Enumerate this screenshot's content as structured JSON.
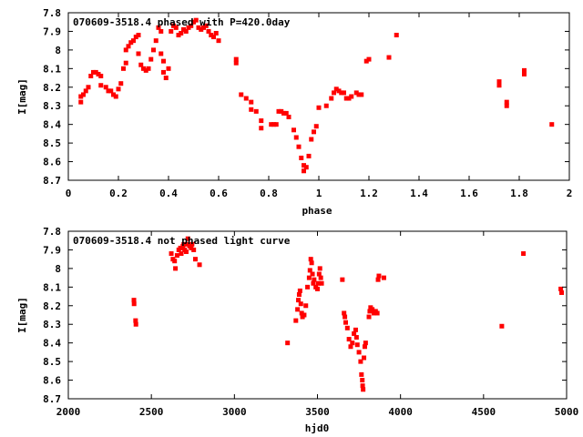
{
  "chart_data": [
    {
      "type": "scatter",
      "title": "070609-3518.4 phased with P=420.0day",
      "xlabel": "phase",
      "ylabel": "I[mag]",
      "xlim": [
        0,
        2
      ],
      "ylim": [
        7.8,
        8.7
      ],
      "y_inverted": true,
      "xticks": [
        0,
        0.2,
        0.4,
        0.6,
        0.8,
        1,
        1.2,
        1.4,
        1.6,
        1.8,
        2
      ],
      "yticks": [
        7.8,
        7.9,
        8,
        8.1,
        8.2,
        8.3,
        8.4,
        8.5,
        8.6,
        8.7
      ],
      "series": [
        {
          "color": "#ff0000",
          "points": [
            [
              0.05,
              8.28
            ],
            [
              0.05,
              8.25
            ],
            [
              0.06,
              8.24
            ],
            [
              0.07,
              8.22
            ],
            [
              0.08,
              8.2
            ],
            [
              0.09,
              8.14
            ],
            [
              0.1,
              8.12
            ],
            [
              0.11,
              8.12
            ],
            [
              0.12,
              8.13
            ],
            [
              0.13,
              8.14
            ],
            [
              0.13,
              8.19
            ],
            [
              0.15,
              8.2
            ],
            [
              0.16,
              8.22
            ],
            [
              0.17,
              8.22
            ],
            [
              0.18,
              8.24
            ],
            [
              0.19,
              8.25
            ],
            [
              0.2,
              8.21
            ],
            [
              0.21,
              8.18
            ],
            [
              0.22,
              8.1
            ],
            [
              0.23,
              8.07
            ],
            [
              0.23,
              8.0
            ],
            [
              0.24,
              7.98
            ],
            [
              0.25,
              7.96
            ],
            [
              0.26,
              7.95
            ],
            [
              0.27,
              7.93
            ],
            [
              0.28,
              7.92
            ],
            [
              0.28,
              8.02
            ],
            [
              0.29,
              8.08
            ],
            [
              0.3,
              8.1
            ],
            [
              0.31,
              8.11
            ],
            [
              0.32,
              8.1
            ],
            [
              0.33,
              8.05
            ],
            [
              0.34,
              8.0
            ],
            [
              0.35,
              7.95
            ],
            [
              0.36,
              7.88
            ],
            [
              0.37,
              7.9
            ],
            [
              0.37,
              8.02
            ],
            [
              0.38,
              8.06
            ],
            [
              0.38,
              8.12
            ],
            [
              0.39,
              8.15
            ],
            [
              0.4,
              8.1
            ],
            [
              0.41,
              7.9
            ],
            [
              0.42,
              7.87
            ],
            [
              0.43,
              7.88
            ],
            [
              0.44,
              7.92
            ],
            [
              0.45,
              7.91
            ],
            [
              0.46,
              7.89
            ],
            [
              0.47,
              7.9
            ],
            [
              0.48,
              7.88
            ],
            [
              0.49,
              7.87
            ],
            [
              0.5,
              7.85
            ],
            [
              0.51,
              7.84
            ],
            [
              0.52,
              7.88
            ],
            [
              0.53,
              7.89
            ],
            [
              0.54,
              7.88
            ],
            [
              0.55,
              7.87
            ],
            [
              0.56,
              7.9
            ],
            [
              0.57,
              7.92
            ],
            [
              0.58,
              7.93
            ],
            [
              0.59,
              7.91
            ],
            [
              0.6,
              7.95
            ],
            [
              0.67,
              8.05
            ],
            [
              0.67,
              8.07
            ],
            [
              0.69,
              8.24
            ],
            [
              0.71,
              8.26
            ],
            [
              0.73,
              8.28
            ],
            [
              0.73,
              8.32
            ],
            [
              0.75,
              8.33
            ],
            [
              0.77,
              8.38
            ],
            [
              0.77,
              8.42
            ],
            [
              0.81,
              8.4
            ],
            [
              0.82,
              8.4
            ],
            [
              0.83,
              8.4
            ],
            [
              0.84,
              8.33
            ],
            [
              0.85,
              8.33
            ],
            [
              0.86,
              8.34
            ],
            [
              0.87,
              8.34
            ],
            [
              0.88,
              8.36
            ],
            [
              0.9,
              8.43
            ],
            [
              0.91,
              8.47
            ],
            [
              0.92,
              8.52
            ],
            [
              0.93,
              8.58
            ],
            [
              0.94,
              8.62
            ],
            [
              0.94,
              8.65
            ],
            [
              0.95,
              8.63
            ],
            [
              0.96,
              8.57
            ],
            [
              0.97,
              8.48
            ],
            [
              0.98,
              8.44
            ],
            [
              0.99,
              8.41
            ],
            [
              1.0,
              8.31
            ],
            [
              1.03,
              8.3
            ],
            [
              1.05,
              8.26
            ],
            [
              1.06,
              8.23
            ],
            [
              1.07,
              8.21
            ],
            [
              1.08,
              8.22
            ],
            [
              1.09,
              8.23
            ],
            [
              1.1,
              8.23
            ],
            [
              1.11,
              8.26
            ],
            [
              1.12,
              8.26
            ],
            [
              1.13,
              8.25
            ],
            [
              1.15,
              8.23
            ],
            [
              1.16,
              8.24
            ],
            [
              1.17,
              8.24
            ],
            [
              1.19,
              8.06
            ],
            [
              1.2,
              8.05
            ],
            [
              1.28,
              8.04
            ],
            [
              1.31,
              7.92
            ],
            [
              1.72,
              8.17
            ],
            [
              1.72,
              8.19
            ],
            [
              1.75,
              8.28
            ],
            [
              1.75,
              8.3
            ],
            [
              1.82,
              8.11
            ],
            [
              1.82,
              8.13
            ],
            [
              1.93,
              8.4
            ]
          ]
        }
      ]
    },
    {
      "type": "scatter",
      "title": "070609-3518.4 not phased light curve",
      "xlabel": "hjd0",
      "ylabel": "I[mag]",
      "xlim": [
        2000,
        5000
      ],
      "ylim": [
        7.8,
        8.7
      ],
      "y_inverted": true,
      "xticks": [
        2000,
        2500,
        3000,
        3500,
        4000,
        4500,
        5000
      ],
      "yticks": [
        7.8,
        7.9,
        8,
        8.1,
        8.2,
        8.3,
        8.4,
        8.5,
        8.6,
        8.7
      ],
      "series": [
        {
          "color": "#ff0000",
          "points": [
            [
              2395,
              8.17
            ],
            [
              2396,
              8.19
            ],
            [
              2405,
              8.28
            ],
            [
              2407,
              8.3
            ],
            [
              2620,
              7.92
            ],
            [
              2630,
              7.95
            ],
            [
              2640,
              7.96
            ],
            [
              2645,
              8.0
            ],
            [
              2655,
              7.93
            ],
            [
              2665,
              7.9
            ],
            [
              2675,
              7.89
            ],
            [
              2680,
              7.92
            ],
            [
              2690,
              7.88
            ],
            [
              2695,
              7.87
            ],
            [
              2700,
              7.9
            ],
            [
              2710,
              7.91
            ],
            [
              2715,
              7.87
            ],
            [
              2720,
              7.84
            ],
            [
              2730,
              7.88
            ],
            [
              2740,
              7.89
            ],
            [
              2745,
              7.87
            ],
            [
              2755,
              7.9
            ],
            [
              2765,
              7.95
            ],
            [
              2790,
              7.98
            ],
            [
              3320,
              8.4
            ],
            [
              3370,
              8.28
            ],
            [
              3380,
              8.22
            ],
            [
              3385,
              8.17
            ],
            [
              3390,
              8.14
            ],
            [
              3395,
              8.12
            ],
            [
              3400,
              8.19
            ],
            [
              3405,
              8.24
            ],
            [
              3410,
              8.26
            ],
            [
              3420,
              8.25
            ],
            [
              3430,
              8.2
            ],
            [
              3440,
              8.1
            ],
            [
              3450,
              8.05
            ],
            [
              3455,
              8.01
            ],
            [
              3460,
              7.95
            ],
            [
              3465,
              7.97
            ],
            [
              3470,
              8.03
            ],
            [
              3475,
              8.08
            ],
            [
              3480,
              8.06
            ],
            [
              3490,
              8.1
            ],
            [
              3500,
              8.11
            ],
            [
              3505,
              8.08
            ],
            [
              3510,
              8.03
            ],
            [
              3515,
              8.0
            ],
            [
              3520,
              8.05
            ],
            [
              3525,
              8.08
            ],
            [
              3650,
              8.06
            ],
            [
              3660,
              8.24
            ],
            [
              3665,
              8.26
            ],
            [
              3670,
              8.29
            ],
            [
              3680,
              8.32
            ],
            [
              3690,
              8.38
            ],
            [
              3700,
              8.42
            ],
            [
              3710,
              8.4
            ],
            [
              3720,
              8.35
            ],
            [
              3730,
              8.33
            ],
            [
              3735,
              8.37
            ],
            [
              3740,
              8.41
            ],
            [
              3750,
              8.45
            ],
            [
              3760,
              8.5
            ],
            [
              3765,
              8.57
            ],
            [
              3770,
              8.6
            ],
            [
              3772,
              8.63
            ],
            [
              3775,
              8.65
            ],
            [
              3780,
              8.48
            ],
            [
              3785,
              8.42
            ],
            [
              3790,
              8.4
            ],
            [
              3810,
              8.26
            ],
            [
              3815,
              8.23
            ],
            [
              3820,
              8.21
            ],
            [
              3830,
              8.22
            ],
            [
              3840,
              8.24
            ],
            [
              3850,
              8.23
            ],
            [
              3860,
              8.24
            ],
            [
              3865,
              8.06
            ],
            [
              3870,
              8.04
            ],
            [
              3900,
              8.05
            ],
            [
              4610,
              8.31
            ],
            [
              4740,
              7.92
            ],
            [
              4965,
              8.11
            ],
            [
              4970,
              8.13
            ]
          ]
        }
      ]
    }
  ]
}
